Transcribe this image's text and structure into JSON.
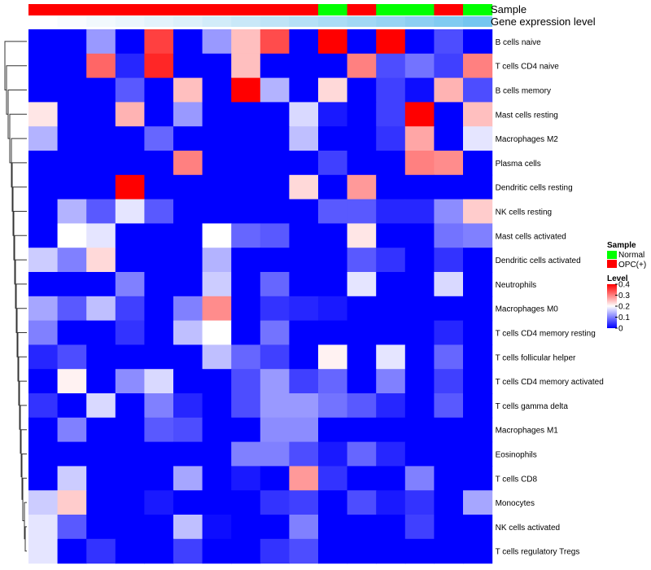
{
  "chart_data": {
    "type": "heatmap",
    "annotation_rows": [
      "Sample",
      "Gene expression level"
    ],
    "sample_groups": [
      "OPC(+)",
      "OPC(+)",
      "OPC(+)",
      "OPC(+)",
      "OPC(+)",
      "OPC(+)",
      "OPC(+)",
      "OPC(+)",
      "OPC(+)",
      "OPC(+)",
      "Normal",
      "OPC(+)",
      "Normal",
      "Normal",
      "OPC(+)",
      "Normal"
    ],
    "expression_shades": [
      "#ffffff",
      "#f9fcfe",
      "#f2f9fd",
      "#ebf6fc",
      "#e3f3fb",
      "#dcf0fa",
      "#d2ecf9",
      "#c9e8f8",
      "#bfe4f7",
      "#b5e0f6",
      "#abdcf5",
      "#a1d8f4",
      "#97d4f3",
      "#8ccff2",
      "#80cbf1",
      "#74c6f0"
    ],
    "rows": [
      "B cells naive",
      "T cells CD4 naive",
      "B cells memory",
      "Mast cells resting",
      "Macrophages M2",
      "Plasma cells",
      "Dendritic cells resting",
      "NK cells resting",
      "Mast cells activated",
      "Dendritic cells activated",
      "Neutrophils",
      "Macrophages M0",
      "T cells CD4 memory resting",
      "T cells follicular helper",
      "T cells CD4 memory activated",
      "T cells gamma delta",
      "Macrophages M1",
      "Eosinophils",
      "T cells CD8",
      "Monocytes",
      "NK cells activated",
      "T cells regulatory  Tregs"
    ],
    "values": [
      [
        0,
        0,
        0.12,
        0,
        0.35,
        0,
        0.12,
        0.25,
        0.34,
        0,
        0.4,
        0,
        0.4,
        0,
        0.06,
        0
      ],
      [
        0,
        0,
        0.32,
        0.03,
        0.37,
        0,
        0,
        0.25,
        0,
        0,
        0,
        0.3,
        0.06,
        0.09,
        0.05,
        0.3
      ],
      [
        0,
        0,
        0,
        0.07,
        0,
        0.25,
        0,
        0.4,
        0.14,
        0,
        0.23,
        0,
        0.05,
        0.01,
        0.26,
        0.06
      ],
      [
        0.22,
        0,
        0,
        0.26,
        0,
        0.12,
        0,
        0,
        0,
        0.17,
        0.02,
        0,
        0.05,
        0.4,
        0,
        0.25
      ],
      [
        0.14,
        0,
        0,
        0,
        0.08,
        0,
        0,
        0,
        0,
        0.15,
        0,
        0,
        0.04,
        0.27,
        0,
        0.18
      ],
      [
        0,
        0,
        0,
        0,
        0,
        0.3,
        0,
        0,
        0,
        0,
        0.05,
        0,
        0,
        0.3,
        0.29,
        0
      ],
      [
        0,
        0,
        0,
        0.4,
        0,
        0,
        0,
        0,
        0,
        0.23,
        0,
        0.28,
        0,
        0,
        0,
        0
      ],
      [
        0,
        0.14,
        0.07,
        0.18,
        0.07,
        0,
        0,
        0,
        0,
        0,
        0.07,
        0.07,
        0.03,
        0.03,
        0.11,
        0.24
      ],
      [
        0,
        0.2,
        0.18,
        0,
        0,
        0,
        0.2,
        0.08,
        0.07,
        0,
        0,
        0.22,
        0,
        0,
        0.09,
        0.1
      ],
      [
        0.16,
        0.1,
        0.23,
        0,
        0,
        0,
        0.14,
        0,
        0,
        0,
        0,
        0.07,
        0.04,
        0,
        0.04,
        0
      ],
      [
        0,
        0,
        0,
        0.1,
        0,
        0,
        0.16,
        0,
        0.08,
        0,
        0,
        0.18,
        0,
        0,
        0.17,
        0
      ],
      [
        0.13,
        0.07,
        0.15,
        0.05,
        0,
        0.1,
        0.29,
        0,
        0.04,
        0.03,
        0.02,
        0,
        0,
        0,
        0,
        0
      ],
      [
        0.1,
        0,
        0,
        0.04,
        0,
        0.15,
        0.2,
        0,
        0.09,
        0,
        0,
        0,
        0,
        0,
        0.03,
        0
      ],
      [
        0.03,
        0.06,
        0,
        0,
        0,
        0,
        0.15,
        0.08,
        0.05,
        0,
        0.21,
        0,
        0.18,
        0,
        0.08,
        0
      ],
      [
        0,
        0.21,
        0,
        0.11,
        0.17,
        0,
        0,
        0.06,
        0.12,
        0.05,
        0.08,
        0,
        0.1,
        0,
        0.05,
        0
      ],
      [
        0.04,
        0,
        0.17,
        0,
        0.1,
        0.03,
        0,
        0.06,
        0.12,
        0.12,
        0.09,
        0.07,
        0.03,
        0,
        0.07,
        0
      ],
      [
        0,
        0.1,
        0,
        0,
        0.07,
        0.06,
        0,
        0,
        0.11,
        0.11,
        0,
        0,
        0,
        0,
        0,
        0
      ],
      [
        0,
        0,
        0,
        0,
        0,
        0,
        0,
        0.1,
        0.1,
        0.06,
        0.02,
        0.08,
        0.03,
        0,
        0,
        0
      ],
      [
        0,
        0.16,
        0,
        0,
        0,
        0.13,
        0,
        0.02,
        0,
        0.28,
        0.04,
        0,
        0,
        0.1,
        0,
        0
      ],
      [
        0.16,
        0.24,
        0,
        0,
        0.02,
        0,
        0,
        0,
        0.04,
        0.05,
        0,
        0.06,
        0.02,
        0.04,
        0,
        0.13
      ],
      [
        0.18,
        0.07,
        0,
        0,
        0,
        0.15,
        0.01,
        0,
        0,
        0.1,
        0,
        0,
        0,
        0.05,
        0,
        0
      ],
      [
        0.18,
        0,
        0.04,
        0,
        0,
        0.05,
        0,
        0,
        0.04,
        0.06,
        0,
        0,
        0,
        0,
        0,
        0
      ]
    ],
    "legend": {
      "sample_title": "Sample",
      "sample_entries": [
        {
          "label": "Normal",
          "color": "#00ff00"
        },
        {
          "label": "OPC(+)",
          "color": "#ff0000"
        }
      ],
      "level_title": "Level",
      "level_ticks": [
        "0.4",
        "0.3",
        "0.2",
        "0.1",
        "0"
      ],
      "level_range": [
        0,
        0.4
      ]
    },
    "colors": {
      "low": "#0000ff",
      "mid": "#ffffff",
      "high": "#ff0000",
      "midpoint": 0.2
    }
  }
}
